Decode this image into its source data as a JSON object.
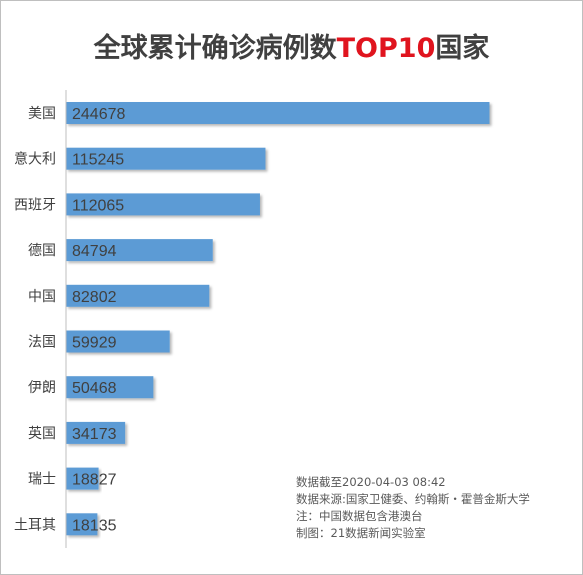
{
  "title": {
    "prefix": "全球累计确诊病例数",
    "highlight": "TOP10",
    "suffix": "国家"
  },
  "chart_data": {
    "type": "bar",
    "orientation": "horizontal",
    "title": "全球累计确诊病例数TOP10国家",
    "categories": [
      "美国",
      "意大利",
      "西班牙",
      "德国",
      "中国",
      "法国",
      "伊朗",
      "英国",
      "瑞士",
      "土耳其"
    ],
    "values": [
      244678,
      115245,
      112065,
      84794,
      82802,
      59929,
      50468,
      34173,
      18827,
      18135
    ],
    "xlim": [
      0,
      260000
    ],
    "grid": false,
    "bar_color": "#5b9bd5",
    "label_color": "#404040"
  },
  "notes": [
    "数据截至2020-04-03 08:42",
    "数据来源:国家卫健委、约翰斯・霍普金斯大学",
    "注：中国数据包含港澳台",
    "制图：21数据新闻实验室"
  ]
}
